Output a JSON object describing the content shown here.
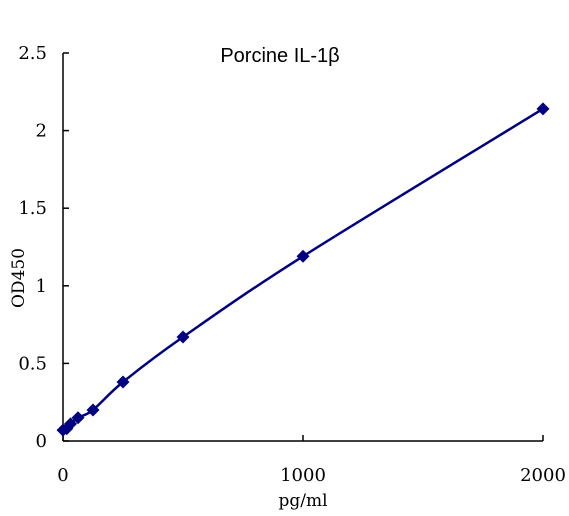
{
  "chart_data": {
    "type": "scatter",
    "title": "Porcine IL-1β",
    "xlabel": "pg/ml",
    "ylabel": "OD450",
    "xlim": [
      0,
      2000
    ],
    "ylim": [
      0,
      2.5
    ],
    "x_ticks": [
      0,
      1000,
      2000
    ],
    "x_tick_labels": [
      "0",
      "1000",
      "2000"
    ],
    "y_ticks": [
      0,
      0.5,
      1,
      1.5,
      2,
      2.5
    ],
    "y_tick_labels": [
      "0",
      "0.5",
      "1",
      "1.5",
      "2",
      "2.5"
    ],
    "grid": false,
    "series": [
      {
        "x": [
          0,
          15.625,
          31.25,
          62.5,
          125,
          250,
          500,
          1000,
          2000
        ],
        "y": [
          0.07,
          0.08,
          0.11,
          0.15,
          0.2,
          0.38,
          0.67,
          1.19,
          2.14
        ],
        "color": "#000080",
        "marker": "diamond",
        "line": "smooth"
      }
    ]
  }
}
